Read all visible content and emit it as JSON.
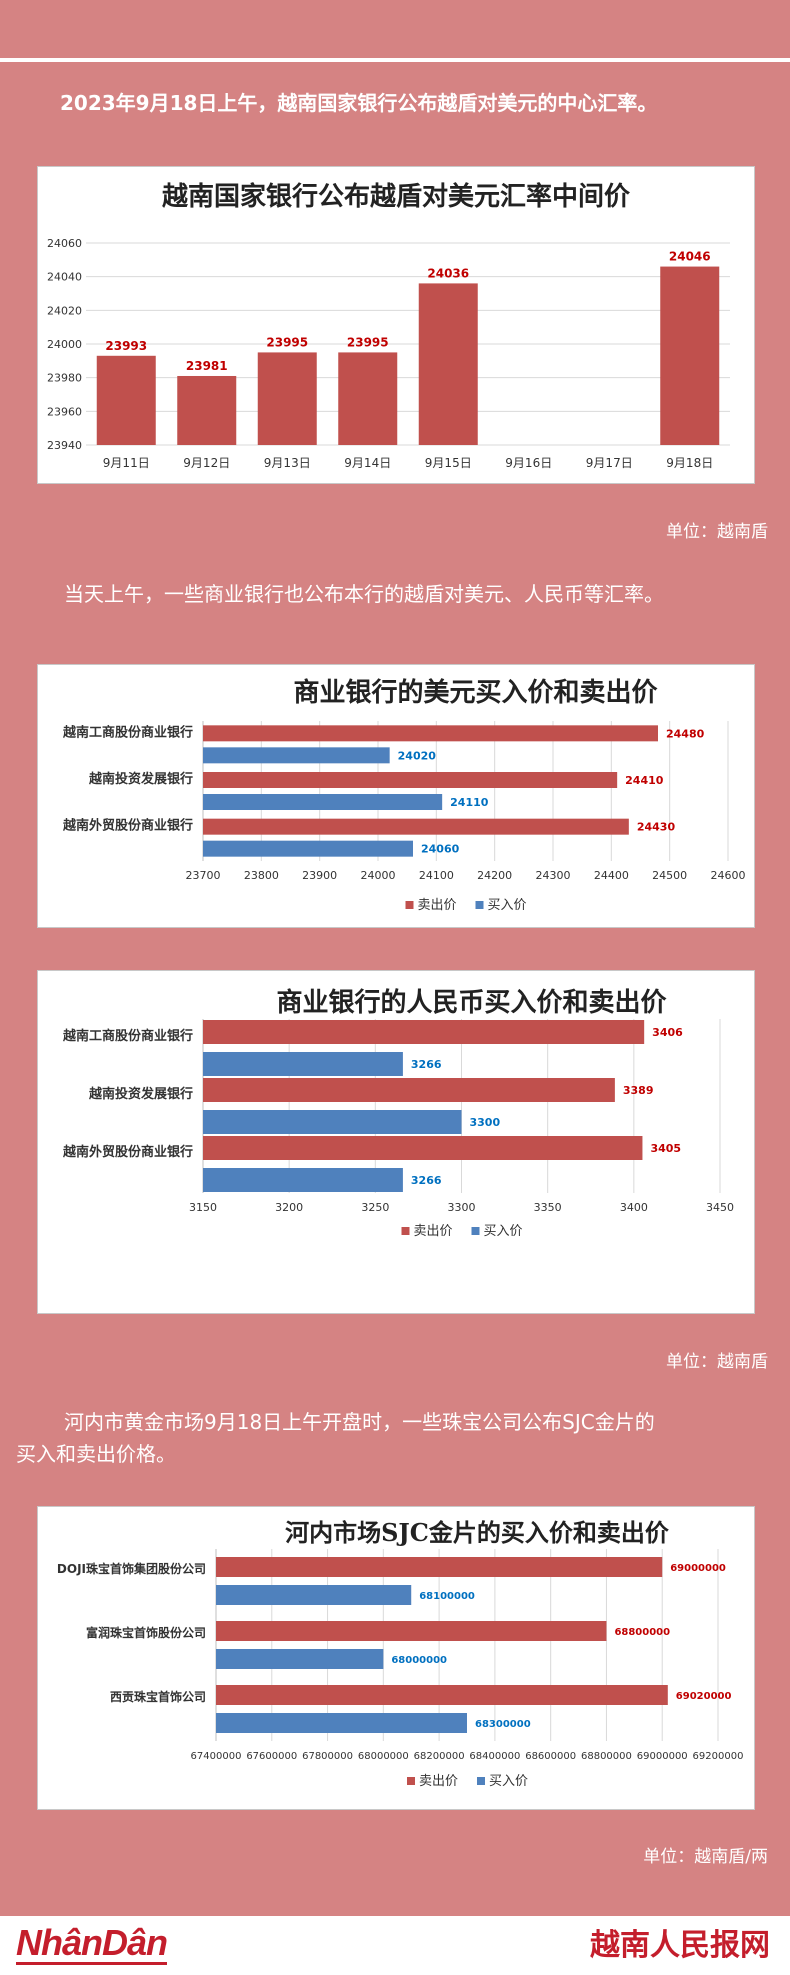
{
  "header": {
    "para1": "2023年9月18日上午，越南国家银行公布越盾对美元的中心汇率。",
    "unit1": "单位：越南盾",
    "para2": "当天上午，一些商业银行也公布本行的越盾对美元、人民币等汇率。",
    "unit2": "单位：越南盾",
    "para3_line1": "河内市黄金市场9月18日上午开盘时，一些珠宝公司公布SJC金片的",
    "para3_line2": "买入和卖出价格。",
    "unit3": "单位：越南盾/两"
  },
  "footer": {
    "logo_left": "NhânDân",
    "logo_right": "越南人民报网"
  },
  "colors": {
    "background": "#d58383",
    "sell": "#c0504d",
    "buy": "#4f81bd",
    "sell_label": "#c00000",
    "buy_label": "#0070c0",
    "brand": "#c41e2c"
  },
  "chart_data": [
    {
      "type": "bar",
      "title": "越南国家银行公布越盾对美元汇率中间价",
      "categories": [
        "9月11日",
        "9月12日",
        "9月13日",
        "9月14日",
        "9月15日",
        "9月16日",
        "9月17日",
        "9月18日"
      ],
      "values": [
        23993,
        23981,
        23995,
        23995,
        24036,
        null,
        null,
        24046
      ],
      "data_labels": [
        "23993",
        "23981",
        "23995",
        "23995",
        "24036",
        "",
        "",
        "24046"
      ],
      "ylim": [
        23940,
        24060
      ],
      "yticks": [
        "23940",
        "23960",
        "23980",
        "24000",
        "24020",
        "24040",
        "24060"
      ],
      "grid": true
    },
    {
      "type": "bar",
      "orientation": "horizontal",
      "title": "商业银行的美元买入价和卖出价",
      "categories": [
        "越南工商股份商业银行",
        "越南投资发展银行",
        "越南外贸股份商业银行"
      ],
      "series": [
        {
          "name": "卖出价",
          "values": [
            24480,
            24410,
            24430
          ],
          "labels": [
            "24480",
            "24410",
            "24430"
          ]
        },
        {
          "name": "买入价",
          "values": [
            24020,
            24110,
            24060
          ],
          "labels": [
            "24020",
            "24110",
            "24060"
          ]
        }
      ],
      "xlim": [
        23700,
        24600
      ],
      "xticks": [
        "23700",
        "23800",
        "23900",
        "24000",
        "24100",
        "24200",
        "24300",
        "24400",
        "24500",
        "24600"
      ],
      "legend": "bottom",
      "grid": true
    },
    {
      "type": "bar",
      "orientation": "horizontal",
      "title": "商业银行的人民币买入价和卖出价",
      "categories": [
        "越南工商股份商业银行",
        "越南投资发展银行",
        "越南外贸股份商业银行"
      ],
      "series": [
        {
          "name": "卖出价",
          "values": [
            3406,
            3389,
            3405
          ],
          "labels": [
            "3406",
            "3389",
            "3405"
          ]
        },
        {
          "name": "买入价",
          "values": [
            3266,
            3300,
            3266
          ],
          "labels": [
            "3266",
            "3300",
            "3266"
          ]
        }
      ],
      "xlim": [
        3150,
        3450
      ],
      "xticks": [
        "3150",
        "3200",
        "3250",
        "3300",
        "3350",
        "3400",
        "3450"
      ],
      "legend": "bottom",
      "grid": true
    },
    {
      "type": "bar",
      "orientation": "horizontal",
      "title": "河内市场SJC金片的买入价和卖出价",
      "categories": [
        "DOJI珠宝首饰集团股份公司",
        "富润珠宝首饰股份公司",
        "西贡珠宝首饰公司"
      ],
      "series": [
        {
          "name": "卖出价",
          "values": [
            69000000,
            68800000,
            69020000
          ],
          "labels": [
            "69000000",
            "68800000",
            "69020000"
          ]
        },
        {
          "name": "买入价",
          "values": [
            68100000,
            68000000,
            68300000
          ],
          "labels": [
            "68100000",
            "68000000",
            "68300000"
          ]
        }
      ],
      "xlim": [
        67400000,
        69200000
      ],
      "xticks": [
        "67400000",
        "67600000",
        "67800000",
        "68000000",
        "68200000",
        "68400000",
        "68600000",
        "68800000",
        "69000000",
        "69200000"
      ],
      "legend": "bottom",
      "grid": true
    }
  ]
}
